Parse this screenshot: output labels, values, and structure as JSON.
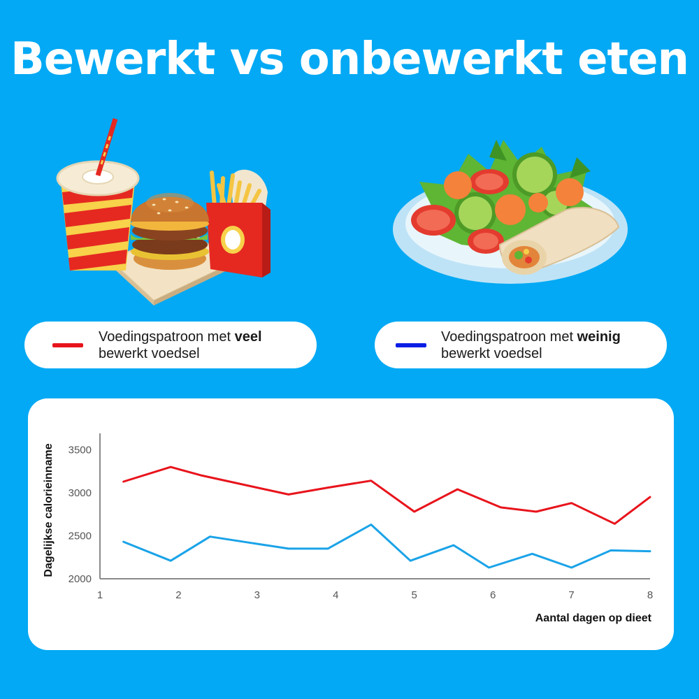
{
  "title": "Bewerkt vs onbewerkt eten",
  "legend": {
    "high": {
      "prefix": "Voedingspatroon met ",
      "emph": "veel",
      "line2": "bewerkt voedsel",
      "color": "#e8141c"
    },
    "low": {
      "prefix": "Voedingspatroon met ",
      "emph": "weinig",
      "line2": "bewerkt voedsel",
      "color": "#0a1ee6"
    }
  },
  "colors": {
    "background": "#03a9f4",
    "card": "#ffffff",
    "line_high": "#e8141c",
    "line_low": "#1aa3e8"
  },
  "icons": {
    "left": "fast-food-illustration",
    "right": "salad-plate-illustration"
  },
  "chart_data": {
    "type": "line",
    "xlabel": "Aantal dagen op dieet",
    "ylabel": "Dagelijkse calorieinname",
    "x_ticks": [
      1,
      2,
      3,
      4,
      5,
      6,
      7,
      8
    ],
    "y_ticks": [
      2000,
      2500,
      3000,
      3500
    ],
    "xlim": [
      1,
      8
    ],
    "ylim": [
      2000,
      3650
    ],
    "grid": false,
    "series": [
      {
        "legend_ref": "high",
        "color": "#e8141c",
        "x": [
          1.3,
          1.9,
          2.3,
          3.4,
          3.9,
          4.45,
          5.0,
          5.55,
          6.1,
          6.55,
          7.0,
          7.55,
          8.0
        ],
        "y": [
          3130,
          3300,
          3200,
          2980,
          3060,
          3140,
          2780,
          3040,
          2830,
          2780,
          2880,
          2640,
          2950
        ]
      },
      {
        "legend_ref": "low",
        "color": "#1aa3e8",
        "x": [
          1.3,
          1.9,
          2.4,
          2.9,
          3.4,
          3.9,
          4.45,
          4.95,
          5.5,
          5.95,
          6.5,
          7.0,
          7.5,
          8.0
        ],
        "y": [
          2430,
          2210,
          2490,
          2420,
          2350,
          2350,
          2630,
          2210,
          2390,
          2130,
          2290,
          2130,
          2330,
          2320
        ]
      }
    ]
  }
}
